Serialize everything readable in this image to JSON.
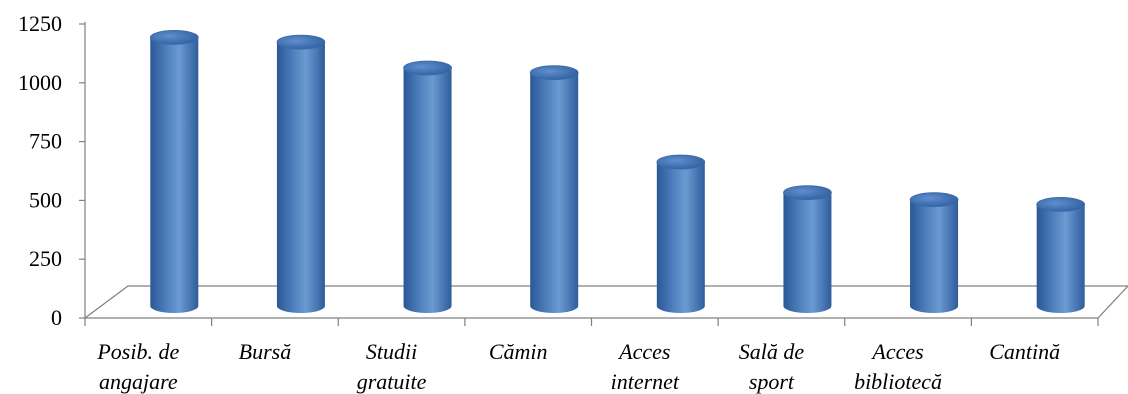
{
  "chart_data": {
    "type": "bar",
    "categories": [
      [
        "Posib. de",
        "angajare"
      ],
      [
        "Bursă"
      ],
      [
        "Studii",
        "gratuite"
      ],
      [
        "Cămin"
      ],
      [
        "Acces",
        "internet"
      ],
      [
        "Sală de",
        "sport"
      ],
      [
        "Acces",
        "bibliotecă"
      ],
      [
        "Cantină"
      ]
    ],
    "values": [
      1210,
      1190,
      1080,
      1060,
      680,
      550,
      520,
      500
    ],
    "yticks": [
      "0",
      "250",
      "500",
      "750",
      "1000",
      "1250"
    ],
    "ylim": [
      0,
      1250
    ],
    "title": "",
    "xlabel": "",
    "ylabel": "",
    "grid": false,
    "legend": "none",
    "colors": {
      "bar_dark": "#2b5796",
      "bar_mid": "#4f81bd",
      "bar_light": "#8db3e2",
      "axis": "#808080"
    }
  }
}
